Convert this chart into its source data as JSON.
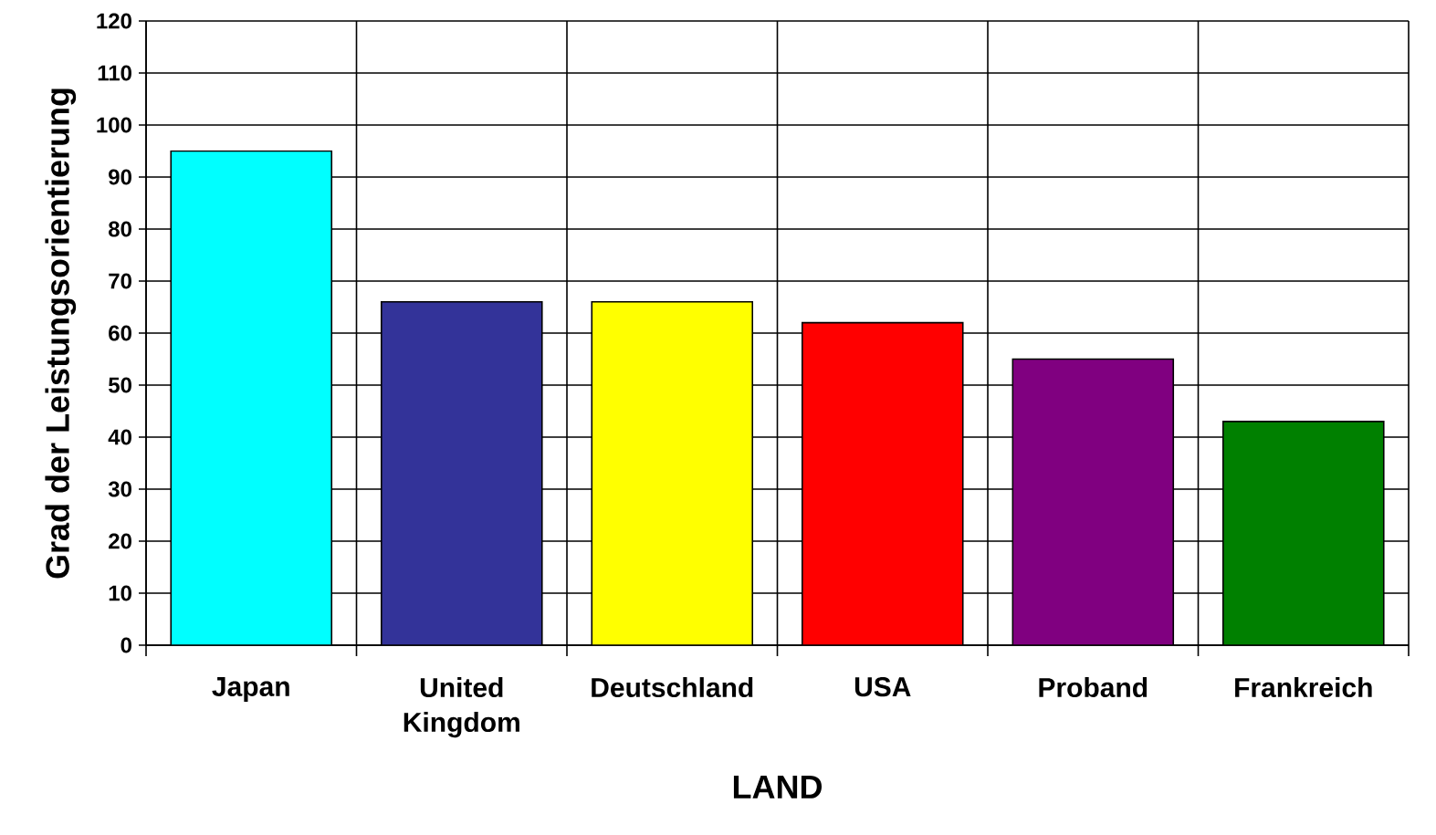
{
  "chart_data": {
    "type": "bar",
    "xlabel": "LAND",
    "ylabel": "Grad der Leistungsorientierung",
    "categories": [
      "Japan",
      "United Kingdom",
      "Deutschland",
      "USA",
      "Proband",
      "Frankreich"
    ],
    "values": [
      95,
      66,
      66,
      62,
      55,
      43
    ],
    "colors": [
      "#00ffff",
      "#333399",
      "#ffff00",
      "#ff0000",
      "#800080",
      "#008000"
    ],
    "ylim": [
      0,
      120
    ],
    "yticks": [
      0,
      10,
      20,
      30,
      40,
      50,
      60,
      70,
      80,
      90,
      100,
      110,
      120
    ],
    "grid": true
  }
}
